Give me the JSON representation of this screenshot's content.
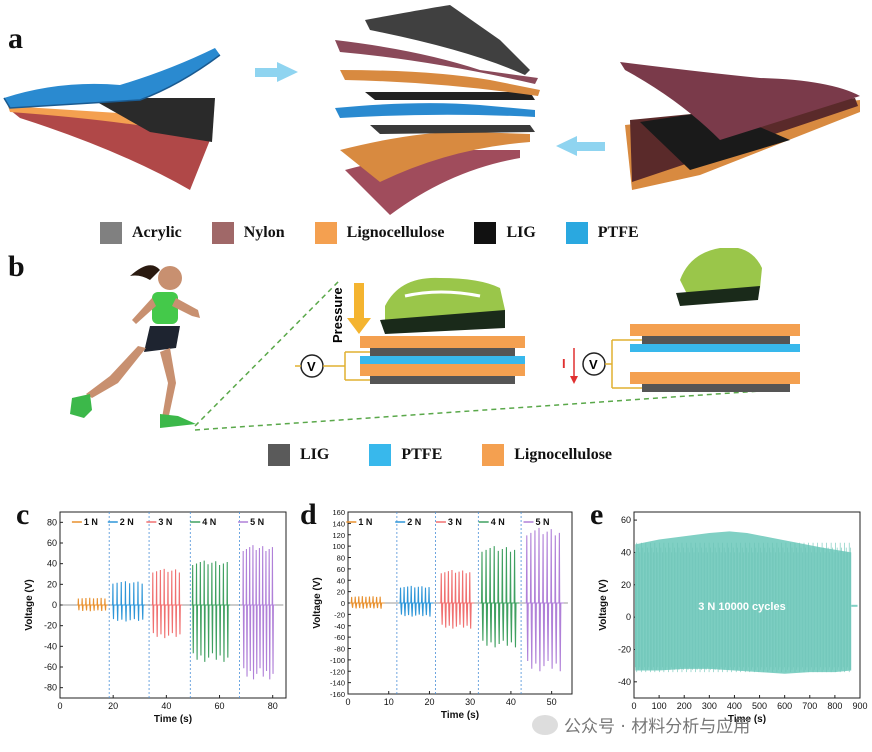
{
  "panels": [
    "a",
    "b",
    "c",
    "d",
    "e"
  ],
  "legend_a": [
    {
      "label": "Acrylic",
      "color": "#808080"
    },
    {
      "label": "Nylon",
      "color": "#a06868"
    },
    {
      "label": "Lignocellulose",
      "color": "#f4a050"
    },
    {
      "label": "LIG",
      "color": "#111111"
    },
    {
      "label": "PTFE",
      "color": "#2aa8e0"
    }
  ],
  "legend_b": [
    {
      "label": "LIG",
      "color": "#5a5a5a"
    },
    {
      "label": "PTFE",
      "color": "#38b8ec"
    },
    {
      "label": "Lignocellulose",
      "color": "#f4a050"
    }
  ],
  "diagram_b": {
    "pressure_label": "Pressure",
    "voltmeter_label": "V",
    "current_label": "I"
  },
  "watermark": {
    "text": "公众号 · 材料分析与应用"
  },
  "chart_data": [
    {
      "type": "line",
      "id": "c",
      "xlabel": "Time (s)",
      "ylabel": "Voltage (V)",
      "xlim": [
        0,
        85
      ],
      "ylim": [
        -90,
        90
      ],
      "xticks": [
        0,
        20,
        40,
        60,
        80
      ],
      "yticks": [
        -80,
        -60,
        -40,
        -20,
        0,
        20,
        40,
        60,
        80
      ],
      "divider_x": [
        18.5,
        33.5,
        49,
        67.5
      ],
      "series": [
        {
          "name": "1 N",
          "color": "#e8902e",
          "x_range": [
            7,
            17
          ],
          "peak": 7,
          "trough": -6,
          "pulses": 8
        },
        {
          "name": "2 N",
          "color": "#2e96d8",
          "x_range": [
            20,
            31
          ],
          "peak": 23,
          "trough": -16,
          "pulses": 8
        },
        {
          "name": "3 N",
          "color": "#f07070",
          "x_range": [
            35,
            45
          ],
          "peak": 35,
          "trough": -32,
          "pulses": 8
        },
        {
          "name": "4 N",
          "color": "#3fa060",
          "x_range": [
            50,
            63
          ],
          "peak": 43,
          "trough": -55,
          "pulses": 10
        },
        {
          "name": "5 N",
          "color": "#b080d8",
          "x_range": [
            69,
            80
          ],
          "peak": 58,
          "trough": -72,
          "pulses": 10
        }
      ]
    },
    {
      "type": "line",
      "id": "d",
      "xlabel": "Time (s)",
      "ylabel": "Voltage (V)",
      "xlim": [
        0,
        55
      ],
      "ylim": [
        -160,
        160
      ],
      "xticks": [
        0,
        10,
        20,
        30,
        40,
        50
      ],
      "yticks": [
        -160,
        -140,
        -120,
        -100,
        -80,
        -60,
        -40,
        -20,
        0,
        20,
        40,
        60,
        80,
        100,
        120,
        140,
        160
      ],
      "divider_x": [
        12,
        21.5,
        32,
        42.5
      ],
      "series": [
        {
          "name": "1 N",
          "color": "#e8902e",
          "x_range": [
            1,
            8
          ],
          "peak": 12,
          "trough": -10,
          "pulses": 9
        },
        {
          "name": "2 N",
          "color": "#2e96d8",
          "x_range": [
            13,
            20
          ],
          "peak": 30,
          "trough": -24,
          "pulses": 9
        },
        {
          "name": "3 N",
          "color": "#f07070",
          "x_range": [
            23,
            30
          ],
          "peak": 58,
          "trough": -45,
          "pulses": 9
        },
        {
          "name": "4 N",
          "color": "#3fa060",
          "x_range": [
            33,
            41
          ],
          "peak": 100,
          "trough": -78,
          "pulses": 9
        },
        {
          "name": "5 N",
          "color": "#b080d8",
          "x_range": [
            44,
            52
          ],
          "peak": 132,
          "trough": -120,
          "pulses": 9
        }
      ]
    },
    {
      "type": "area",
      "id": "e",
      "xlabel": "Time (s)",
      "ylabel": "Voltage (V)",
      "xlim": [
        0,
        900
      ],
      "ylim": [
        -50,
        65
      ],
      "xticks": [
        0,
        100,
        200,
        300,
        400,
        500,
        600,
        700,
        800,
        900
      ],
      "yticks": [
        -40,
        -20,
        0,
        20,
        40,
        60
      ],
      "color": "#80d0c4",
      "annotation": "3 N    10000 cycles",
      "x_range": [
        5,
        865
      ],
      "upper_env": [
        [
          5,
          45
        ],
        [
          100,
          48
        ],
        [
          200,
          50
        ],
        [
          300,
          52
        ],
        [
          380,
          53
        ],
        [
          450,
          52
        ],
        [
          550,
          49
        ],
        [
          650,
          46
        ],
        [
          750,
          43
        ],
        [
          865,
          40
        ]
      ],
      "lower_env": [
        [
          5,
          -33
        ],
        [
          100,
          -33
        ],
        [
          200,
          -32
        ],
        [
          300,
          -32
        ],
        [
          400,
          -33
        ],
        [
          500,
          -34
        ],
        [
          600,
          -35
        ],
        [
          700,
          -34
        ],
        [
          800,
          -34
        ],
        [
          865,
          -33
        ]
      ]
    }
  ]
}
